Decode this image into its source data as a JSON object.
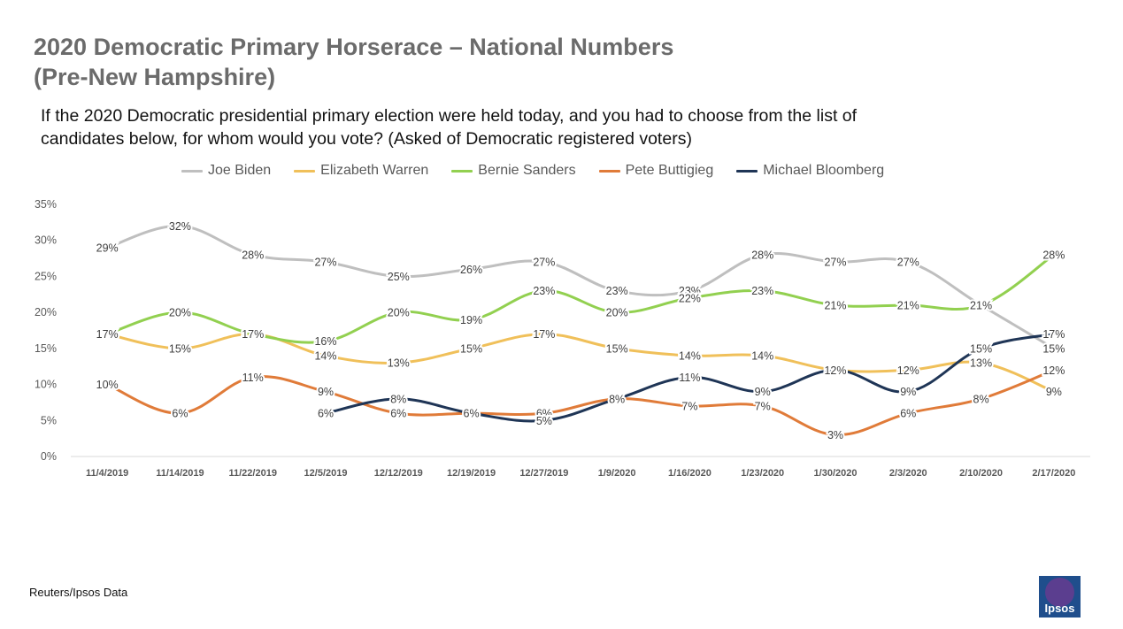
{
  "title_line1": "2020 Democratic Primary Horserace – National Numbers",
  "title_line2": "(Pre-New Hampshire)",
  "subtitle_line1": "If the 2020 Democratic presidential primary election were held today, and you had to choose from the list of",
  "subtitle_line2": "candidates below, for whom would you vote?  (Asked of Democratic registered voters)",
  "source": "Reuters/Ipsos Data",
  "logo_text": "Ipsos",
  "chart_data": {
    "type": "line",
    "categories": [
      "11/4/2019",
      "11/14/2019",
      "11/22/2019",
      "12/5/2019",
      "12/12/2019",
      "12/19/2019",
      "12/27/2019",
      "1/9/2020",
      "1/16/2020",
      "1/23/2020",
      "1/30/2020",
      "2/3/2020",
      "2/10/2020",
      "2/17/2020"
    ],
    "y_ticks": [
      "0%",
      "5%",
      "10%",
      "15%",
      "20%",
      "25%",
      "30%",
      "35%"
    ],
    "ylim": [
      0,
      35
    ],
    "grid": false,
    "legend_position": "top",
    "series": [
      {
        "name": "Joe Biden",
        "color": "#bfbfbf",
        "values": [
          29,
          32,
          28,
          27,
          25,
          26,
          27,
          23,
          23,
          28,
          27,
          27,
          21,
          15
        ]
      },
      {
        "name": "Elizabeth Warren",
        "color": "#f0c05a",
        "values": [
          17,
          15,
          17,
          14,
          13,
          15,
          17,
          15,
          14,
          14,
          12,
          12,
          13,
          9
        ]
      },
      {
        "name": "Bernie Sanders",
        "color": "#92d050",
        "values": [
          17,
          20,
          17,
          16,
          20,
          19,
          23,
          20,
          22,
          23,
          21,
          21,
          21,
          28
        ]
      },
      {
        "name": "Pete Buttigieg",
        "color": "#e07b39",
        "values": [
          10,
          6,
          11,
          9,
          6,
          6,
          6,
          8,
          7,
          7,
          3,
          6,
          8,
          12
        ]
      },
      {
        "name": "Michael Bloomberg",
        "color": "#1f3556",
        "values": [
          null,
          null,
          null,
          6,
          8,
          6,
          5,
          8,
          11,
          9,
          12,
          9,
          15,
          17
        ]
      }
    ]
  }
}
